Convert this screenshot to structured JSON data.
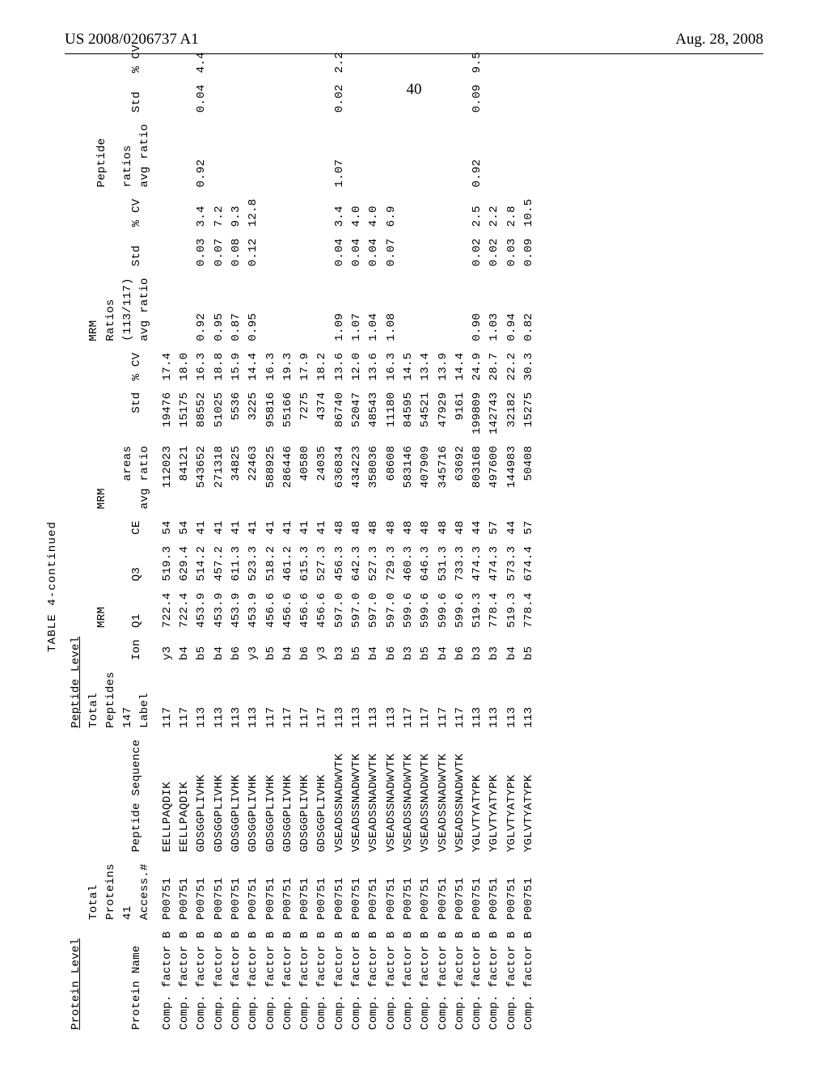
{
  "header": {
    "left": "US 2008/0206737 A1",
    "right": "Aug. 28, 2008",
    "page_number": "40"
  },
  "table": {
    "caption": "TABLE 4-continued",
    "section_headers": {
      "protein_level": "Protein Level",
      "peptide_level": "Peptide Level"
    },
    "group_headers": {
      "total_proteins": "Total\nProteins",
      "total_peptides": "Total\nPeptides",
      "mrm_q": "MRM",
      "mrm_areas": "MRM",
      "mrm_ratios": "MRM\nRatios",
      "peptide_ratios": "Peptide"
    },
    "sub_headers": {
      "protein_name": "Protein Name",
      "access_41": "41\nAccess.#",
      "peptide_sequence": "Peptide Sequence",
      "label_147": "147\nLabel",
      "ion": "Ion",
      "q1": "Q1",
      "q3": "Q3",
      "ce": "CE",
      "areas_avg_ratio": "areas\navg ratio",
      "std": "Std",
      "pct_cv": "% CV",
      "ratio_113_117": "(113/117)\navg ratio",
      "std2": "Std",
      "pct_cv2": "% CV",
      "ratios_avg": "ratios\navg ratio",
      "std3": "Std",
      "pct_cv3": "% CV"
    },
    "rows": [
      {
        "pn": "Comp. factor B",
        "acc": "P00751",
        "seq": "EELLPAQDIK",
        "lbl": "117",
        "ion": "y3",
        "q1": "722.4",
        "q3": "519.3",
        "ce": "54",
        "avr": "112023",
        "std": "19476",
        "cv": "17.4",
        "r113": "",
        "s113": "",
        "cv113": "",
        "pr": "",
        "ps": "",
        "pcv": ""
      },
      {
        "pn": "Comp. factor B",
        "acc": "P00751",
        "seq": "EELLPAQDIK",
        "lbl": "117",
        "ion": "b4",
        "q1": "722.4",
        "q3": "629.4",
        "ce": "54",
        "avr": "84121",
        "std": "15175",
        "cv": "18.0",
        "r113": "",
        "s113": "",
        "cv113": "",
        "pr": "",
        "ps": "",
        "pcv": ""
      },
      {
        "pn": "Comp. factor B",
        "acc": "P00751",
        "seq": "GDSGGPLIVHK",
        "lbl": "113",
        "ion": "b5",
        "q1": "453.9",
        "q3": "514.2",
        "ce": "41",
        "avr": "543652",
        "std": "88552",
        "cv": "16.3",
        "r113": "0.92",
        "s113": "0.03",
        "cv113": "3.4",
        "pr": "0.92",
        "ps": "0.04",
        "pcv": "4.4"
      },
      {
        "pn": "Comp. factor B",
        "acc": "P00751",
        "seq": "GDSGGPLIVHK",
        "lbl": "113",
        "ion": "b4",
        "q1": "453.9",
        "q3": "457.2",
        "ce": "41",
        "avr": "271318",
        "std": "51025",
        "cv": "18.8",
        "r113": "0.95",
        "s113": "0.07",
        "cv113": "7.2",
        "pr": "",
        "ps": "",
        "pcv": ""
      },
      {
        "pn": "Comp. factor B",
        "acc": "P00751",
        "seq": "GDSGGPLIVHK",
        "lbl": "113",
        "ion": "b6",
        "q1": "453.9",
        "q3": "611.3",
        "ce": "41",
        "avr": "34825",
        "std": "5536",
        "cv": "15.9",
        "r113": "0.87",
        "s113": "0.08",
        "cv113": "9.3",
        "pr": "",
        "ps": "",
        "pcv": ""
      },
      {
        "pn": "Comp. factor B",
        "acc": "P00751",
        "seq": "GDSGGPLIVHK",
        "lbl": "113",
        "ion": "y3",
        "q1": "453.9",
        "q3": "523.3",
        "ce": "41",
        "avr": "22463",
        "std": "3225",
        "cv": "14.4",
        "r113": "0.95",
        "s113": "0.12",
        "cv113": "12.8",
        "pr": "",
        "ps": "",
        "pcv": ""
      },
      {
        "pn": "Comp. factor B",
        "acc": "P00751",
        "seq": "GDSGGPLIVHK",
        "lbl": "117",
        "ion": "b5",
        "q1": "456.6",
        "q3": "518.2",
        "ce": "41",
        "avr": "588925",
        "std": "95816",
        "cv": "16.3",
        "r113": "",
        "s113": "",
        "cv113": "",
        "pr": "",
        "ps": "",
        "pcv": ""
      },
      {
        "pn": "Comp. factor B",
        "acc": "P00751",
        "seq": "GDSGGPLIVHK",
        "lbl": "117",
        "ion": "b4",
        "q1": "456.6",
        "q3": "461.2",
        "ce": "41",
        "avr": "286446",
        "std": "55166",
        "cv": "19.3",
        "r113": "",
        "s113": "",
        "cv113": "",
        "pr": "",
        "ps": "",
        "pcv": ""
      },
      {
        "pn": "Comp. factor B",
        "acc": "P00751",
        "seq": "GDSGGPLIVHK",
        "lbl": "117",
        "ion": "b6",
        "q1": "456.6",
        "q3": "615.3",
        "ce": "41",
        "avr": "40580",
        "std": "7275",
        "cv": "17.9",
        "r113": "",
        "s113": "",
        "cv113": "",
        "pr": "",
        "ps": "",
        "pcv": ""
      },
      {
        "pn": "Comp. factor B",
        "acc": "P00751",
        "seq": "GDSGGPLIVHK",
        "lbl": "117",
        "ion": "y3",
        "q1": "456.6",
        "q3": "527.3",
        "ce": "41",
        "avr": "24035",
        "std": "4374",
        "cv": "18.2",
        "r113": "",
        "s113": "",
        "cv113": "",
        "pr": "",
        "ps": "",
        "pcv": ""
      },
      {
        "pn": "Comp. factor B",
        "acc": "P00751",
        "seq": "VSEADSSNADWVTK",
        "lbl": "113",
        "ion": "b3",
        "q1": "597.0",
        "q3": "456.3",
        "ce": "48",
        "avr": "636834",
        "std": "86740",
        "cv": "13.6",
        "r113": "1.09",
        "s113": "0.04",
        "cv113": "3.4",
        "pr": "1.07",
        "ps": "0.02",
        "pcv": "2.2"
      },
      {
        "pn": "Comp. factor B",
        "acc": "P00751",
        "seq": "VSEADSSNADWVTK",
        "lbl": "113",
        "ion": "b5",
        "q1": "597.0",
        "q3": "642.3",
        "ce": "48",
        "avr": "434223",
        "std": "52047",
        "cv": "12.0",
        "r113": "1.07",
        "s113": "0.04",
        "cv113": "4.0",
        "pr": "",
        "ps": "",
        "pcv": ""
      },
      {
        "pn": "Comp. factor B",
        "acc": "P00751",
        "seq": "VSEADSSNADWVTK",
        "lbl": "113",
        "ion": "b4",
        "q1": "597.0",
        "q3": "527.3",
        "ce": "48",
        "avr": "358036",
        "std": "48543",
        "cv": "13.6",
        "r113": "1.04",
        "s113": "0.04",
        "cv113": "4.0",
        "pr": "",
        "ps": "",
        "pcv": ""
      },
      {
        "pn": "Comp. factor B",
        "acc": "P00751",
        "seq": "VSEADSSNADWVTK",
        "lbl": "113",
        "ion": "b6",
        "q1": "597.0",
        "q3": "729.3",
        "ce": "48",
        "avr": "68608",
        "std": "11180",
        "cv": "16.3",
        "r113": "1.08",
        "s113": "0.07",
        "cv113": "6.9",
        "pr": "",
        "ps": "",
        "pcv": ""
      },
      {
        "pn": "Comp. factor B",
        "acc": "P00751",
        "seq": "VSEADSSNADWVTK",
        "lbl": "117",
        "ion": "b3",
        "q1": "599.6",
        "q3": "460.3",
        "ce": "48",
        "avr": "583146",
        "std": "84595",
        "cv": "14.5",
        "r113": "",
        "s113": "",
        "cv113": "",
        "pr": "",
        "ps": "",
        "pcv": ""
      },
      {
        "pn": "Comp. factor B",
        "acc": "P00751",
        "seq": "VSEADSSNADWVTK",
        "lbl": "117",
        "ion": "b5",
        "q1": "599.6",
        "q3": "646.3",
        "ce": "48",
        "avr": "407909",
        "std": "54521",
        "cv": "13.4",
        "r113": "",
        "s113": "",
        "cv113": "",
        "pr": "",
        "ps": "",
        "pcv": ""
      },
      {
        "pn": "Comp. factor B",
        "acc": "P00751",
        "seq": "VSEADSSNADWVTK",
        "lbl": "117",
        "ion": "b4",
        "q1": "599.6",
        "q3": "531.3",
        "ce": "48",
        "avr": "345716",
        "std": "47929",
        "cv": "13.9",
        "r113": "",
        "s113": "",
        "cv113": "",
        "pr": "",
        "ps": "",
        "pcv": ""
      },
      {
        "pn": "Comp. factor B",
        "acc": "P00751",
        "seq": "VSEADSSNADWVTK",
        "lbl": "117",
        "ion": "b6",
        "q1": "599.6",
        "q3": "733.3",
        "ce": "48",
        "avr": "63692",
        "std": "9161",
        "cv": "14.4",
        "r113": "",
        "s113": "",
        "cv113": "",
        "pr": "",
        "ps": "",
        "pcv": ""
      },
      {
        "pn": "Comp. factor B",
        "acc": "P00751",
        "seq": "YGLVTYATYPK",
        "lbl": "113",
        "ion": "b3",
        "q1": "519.3",
        "q3": "474.3",
        "ce": "44",
        "avr": "803168",
        "std": "199809",
        "cv": "24.9",
        "r113": "0.90",
        "s113": "0.02",
        "cv113": "2.5",
        "pr": "0.92",
        "ps": "0.09",
        "pcv": "9.5"
      },
      {
        "pn": "Comp. factor B",
        "acc": "P00751",
        "seq": "YGLVTYATYPK",
        "lbl": "113",
        "ion": "b3",
        "q1": "778.4",
        "q3": "474.3",
        "ce": "57",
        "avr": "497600",
        "std": "142743",
        "cv": "28.7",
        "r113": "1.03",
        "s113": "0.02",
        "cv113": "2.2",
        "pr": "",
        "ps": "",
        "pcv": ""
      },
      {
        "pn": "Comp. factor B",
        "acc": "P00751",
        "seq": "YGLVTYATYPK",
        "lbl": "113",
        "ion": "b4",
        "q1": "519.3",
        "q3": "573.3",
        "ce": "44",
        "avr": "144983",
        "std": "32182",
        "cv": "22.2",
        "r113": "0.94",
        "s113": "0.03",
        "cv113": "2.8",
        "pr": "",
        "ps": "",
        "pcv": ""
      },
      {
        "pn": "Comp. factor B",
        "acc": "P00751",
        "seq": "YGLVTYATYPK",
        "lbl": "113",
        "ion": "b5",
        "q1": "778.4",
        "q3": "674.4",
        "ce": "57",
        "avr": "50408",
        "std": "15275",
        "cv": "30.3",
        "r113": "0.82",
        "s113": "0.09",
        "cv113": "10.5",
        "pr": "",
        "ps": "",
        "pcv": ""
      }
    ]
  }
}
